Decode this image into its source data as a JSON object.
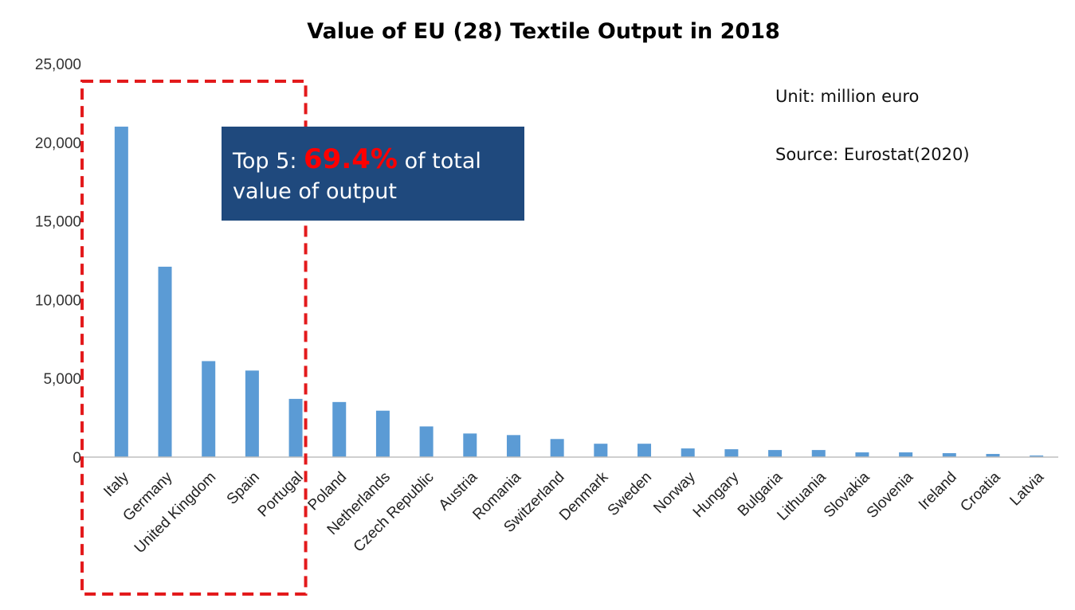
{
  "chart_data": {
    "type": "bar",
    "title": "Value of EU (28) Textile Output in 2018",
    "xlabel": "",
    "ylabel": "",
    "ylim": [
      0,
      25000
    ],
    "yticks": [
      "0",
      "5,000",
      "10,000",
      "15,000",
      "20,000",
      "25,000"
    ],
    "ytick_values": [
      0,
      5000,
      10000,
      15000,
      20000,
      25000
    ],
    "categories": [
      "Italy",
      "Germany",
      "United Kingdom",
      "Spain",
      "Portugal",
      "Poland",
      "Netherlands",
      "Czech Republic",
      "Austria",
      "Romania",
      "Switzerland",
      "Denmark",
      "Sweden",
      "Norway",
      "Hungary",
      "Bulgaria",
      "Lithuania",
      "Slovakia",
      "Slovenia",
      "Ireland",
      "Croatia",
      "Latvia"
    ],
    "values": [
      21000,
      12100,
      6100,
      5500,
      3700,
      3500,
      2950,
      1950,
      1500,
      1400,
      1150,
      850,
      850,
      550,
      500,
      450,
      450,
      300,
      300,
      250,
      200,
      100
    ],
    "bar_color": "#5b9bd5",
    "grid": false,
    "annotations": {
      "unit": "Unit: million euro",
      "source": "Source: Eurostat(2020)",
      "highlight": "Top 5",
      "highlight_count": 5,
      "highlight_border_color": "#e31a1c"
    }
  },
  "callout": {
    "prefix": "Top 5: ",
    "percent": "69.4%",
    "suffix": " of total value of output",
    "background": "#1f497d",
    "percent_color": "#ff0000"
  }
}
